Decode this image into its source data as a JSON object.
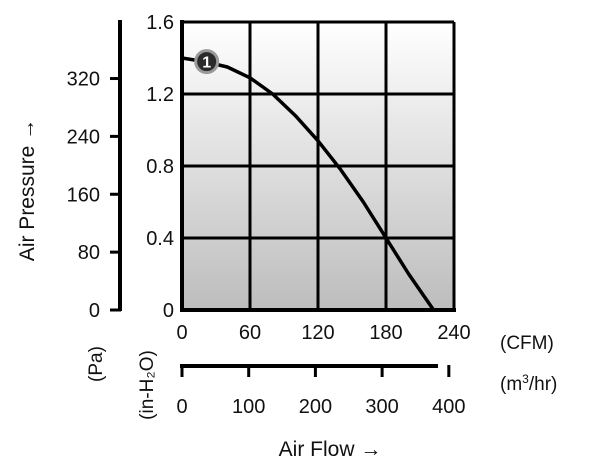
{
  "chart_data": {
    "type": "line",
    "ylabel": "Air Pressure →",
    "xlabel": "Air Flow →",
    "primary_y": {
      "unit": "(in-H₂O)",
      "ticks": [
        "0",
        "0.4",
        "0.8",
        "1.2",
        "1.6"
      ],
      "tick_values": [
        0,
        0.4,
        0.8,
        1.2,
        1.6
      ],
      "range": [
        0,
        1.6
      ]
    },
    "secondary_y": {
      "unit": "(Pa)",
      "ticks": [
        "0",
        "80",
        "160",
        "240",
        "320"
      ],
      "tick_values": [
        0,
        80,
        160,
        240,
        320
      ]
    },
    "primary_x": {
      "unit": "(CFM)",
      "ticks": [
        "0",
        "60",
        "120",
        "180",
        "240"
      ],
      "tick_values": [
        0,
        60,
        120,
        180,
        240
      ],
      "range": [
        0,
        240
      ]
    },
    "secondary_x": {
      "unit": "(m³/hr)",
      "ticks": [
        "0",
        "100",
        "200",
        "300",
        "400"
      ],
      "tick_values": [
        0,
        100,
        200,
        300,
        400
      ]
    },
    "grid": true,
    "series": [
      {
        "label": "1",
        "color": "#000000",
        "x": [
          0,
          20,
          40,
          60,
          80,
          100,
          120,
          140,
          160,
          180,
          200,
          222
        ],
        "y": [
          1.4,
          1.38,
          1.35,
          1.29,
          1.2,
          1.08,
          0.94,
          0.78,
          0.6,
          0.4,
          0.2,
          0
        ]
      }
    ]
  }
}
